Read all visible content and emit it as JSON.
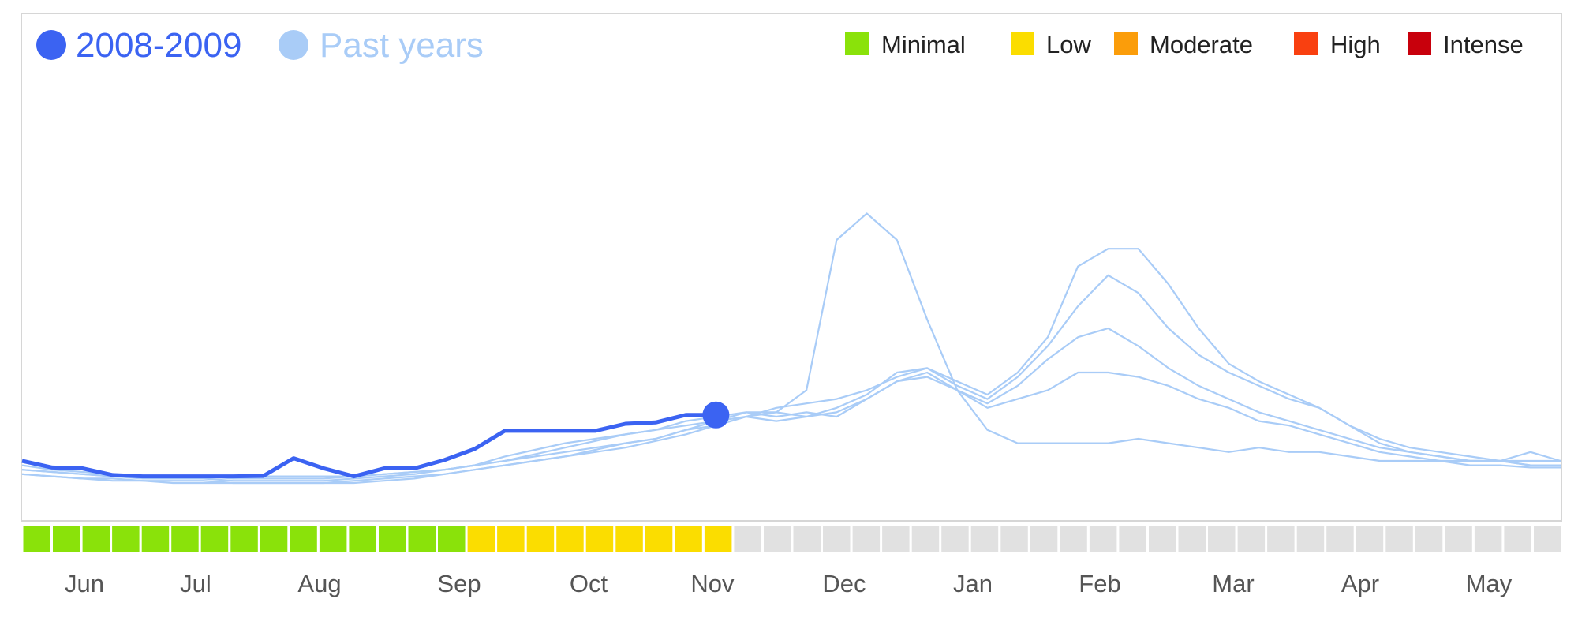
{
  "legend": {
    "series": [
      {
        "label": "2008-2009",
        "color": "#3b63f2"
      },
      {
        "label": "Past years",
        "color": "#a9ccf7"
      }
    ],
    "levels": [
      {
        "label": "Minimal",
        "color": "#8ae20a"
      },
      {
        "label": "Low",
        "color": "#fbdd00"
      },
      {
        "label": "Moderate",
        "color": "#fb9d0a"
      },
      {
        "label": "High",
        "color": "#f94010"
      },
      {
        "label": "Intense",
        "color": "#c8000c"
      }
    ]
  },
  "chart_data": {
    "type": "line",
    "title": "",
    "xlabel": "",
    "ylabel": "",
    "months": [
      "Jun",
      "Jul",
      "Aug",
      "Sep",
      "Oct",
      "Nov",
      "Dec",
      "Jan",
      "Feb",
      "Mar",
      "Apr",
      "May"
    ],
    "weeks_total": 52,
    "ylim": [
      0,
      100
    ],
    "grid": false,
    "legend_position": "top",
    "series": [
      {
        "name": "2008-2009",
        "color": "#3b63f2",
        "week": [
          0,
          1,
          2,
          3,
          4,
          5,
          6,
          7,
          8,
          9,
          10,
          11,
          12,
          13,
          14,
          15,
          16,
          17,
          18,
          19,
          20,
          21,
          22,
          23
        ],
        "values": [
          10,
          8.5,
          8.3,
          6.8,
          6.5,
          6.5,
          6.5,
          6.5,
          6.6,
          10.6,
          8.3,
          6.5,
          8.3,
          8.3,
          10.2,
          12.7,
          16.8,
          16.8,
          16.8,
          16.8,
          18.4,
          18.7,
          20.4,
          20.4
        ]
      },
      {
        "name": "",
        "color": "#a9ccf7",
        "values": [
          9,
          8,
          7.5,
          7,
          6.5,
          6.5,
          6.5,
          6.5,
          6.5,
          6.5,
          6.5,
          6.5,
          7,
          7.5,
          8,
          9,
          11,
          12.5,
          14,
          15,
          16,
          17,
          18,
          19,
          20,
          21,
          26,
          60,
          66,
          60,
          42,
          26,
          17,
          14,
          14,
          14,
          14,
          15,
          14,
          13,
          12,
          13,
          12,
          12,
          11,
          10,
          10,
          10,
          9,
          9,
          8.5,
          8.5
        ]
      },
      {
        "name": "",
        "color": "#a9ccf7",
        "values": [
          8,
          7.5,
          7,
          6.5,
          6.5,
          6.5,
          6.5,
          6,
          6,
          6,
          6,
          6.5,
          7,
          7.5,
          8,
          9,
          10,
          11,
          12,
          13,
          14,
          15,
          17,
          19,
          21,
          20,
          21,
          20,
          24,
          28,
          30,
          26,
          22,
          24,
          26,
          30,
          30,
          29,
          27,
          24,
          22,
          19,
          18,
          16,
          14,
          12,
          11,
          10,
          10,
          10,
          10,
          10
        ]
      },
      {
        "name": "",
        "color": "#a9ccf7",
        "values": [
          8,
          7.5,
          7,
          6.5,
          6,
          6,
          6,
          5.5,
          5.5,
          5.5,
          5.5,
          6,
          6.5,
          7,
          8,
          9,
          10,
          11.5,
          13,
          14.5,
          16,
          17,
          19,
          20,
          21,
          21,
          20,
          21,
          24,
          28,
          29,
          26,
          23,
          27,
          33,
          38,
          40,
          36,
          31,
          27,
          24,
          21,
          19,
          17,
          15,
          13,
          12,
          11,
          10,
          10,
          9,
          9
        ]
      },
      {
        "name": "",
        "color": "#a9ccf7",
        "values": [
          7,
          6.5,
          6,
          6,
          5.5,
          5.5,
          5.5,
          5,
          5,
          5,
          5,
          5.5,
          6,
          6.5,
          7,
          8,
          9,
          10,
          11,
          12,
          13,
          14.5,
          16,
          18,
          20,
          22,
          23,
          24,
          26,
          29,
          31,
          27,
          24,
          29,
          36,
          45,
          52,
          48,
          40,
          34,
          30,
          27,
          24,
          22,
          18,
          14,
          12,
          11,
          10,
          10,
          9,
          9
        ]
      },
      {
        "name": "",
        "color": "#a9ccf7",
        "values": [
          7,
          6.5,
          6,
          5.5,
          5.5,
          5,
          5,
          5,
          5,
          5,
          5,
          5,
          5.5,
          6,
          7,
          8,
          9,
          10,
          11,
          12.5,
          14,
          15,
          17,
          18,
          20,
          19,
          20,
          22,
          25,
          30,
          31,
          28,
          25,
          30,
          38,
          54,
          58,
          58,
          50,
          40,
          32,
          28,
          25,
          22,
          18,
          15,
          13,
          12,
          11,
          10,
          12,
          10
        ]
      }
    ],
    "activity_levels": [
      "Minimal",
      "Minimal",
      "Minimal",
      "Minimal",
      "Minimal",
      "Minimal",
      "Minimal",
      "Minimal",
      "Minimal",
      "Minimal",
      "Minimal",
      "Minimal",
      "Minimal",
      "Minimal",
      "Minimal",
      "Low",
      "Low",
      "Low",
      "Low",
      "Low",
      "Low",
      "Low",
      "Low",
      "Low",
      "None",
      "None",
      "None",
      "None",
      "None",
      "None",
      "None",
      "None",
      "None",
      "None",
      "None",
      "None",
      "None",
      "None",
      "None",
      "None",
      "None",
      "None",
      "None",
      "None",
      "None",
      "None",
      "None",
      "None",
      "None",
      "None",
      "None",
      "None"
    ],
    "level_colors": {
      "Minimal": "#8ae20a",
      "Low": "#fbdd00",
      "Moderate": "#fb9d0a",
      "High": "#f94010",
      "Intense": "#c8000c",
      "None": "#e1e1e1"
    }
  }
}
